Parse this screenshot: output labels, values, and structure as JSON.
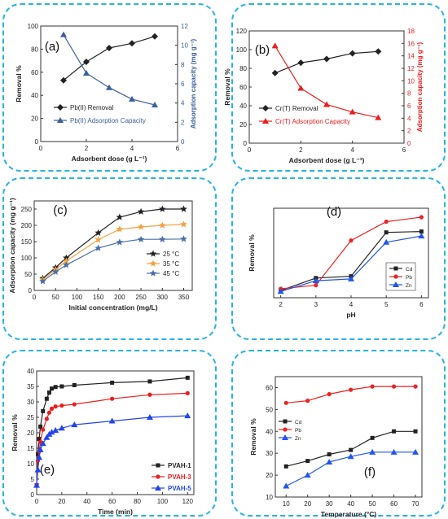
{
  "chart_data": [
    {
      "type": "line",
      "panel_label": "(a)",
      "xlabel": "Adsorbent dose (g L⁻¹)",
      "ylabel": "Removal %",
      "y2label": "Adsorption capacity (mg g⁻¹)",
      "xlim": [
        0,
        6
      ],
      "ylim": [
        0,
        100
      ],
      "y2lim": [
        0,
        12
      ],
      "xticks": [
        0,
        2,
        4,
        6
      ],
      "yticks": [
        0,
        20,
        40,
        60,
        80,
        100
      ],
      "y2ticks": [
        0,
        2,
        4,
        6,
        8,
        10,
        12
      ],
      "legend_position": "bottom-left",
      "colors": {
        "s1": "#222222",
        "s2": "#3a5f9a"
      },
      "series": [
        {
          "name": "Pb(II) Removal",
          "axis": "left",
          "marker": "diamond",
          "x": [
            1,
            2,
            3,
            4,
            5
          ],
          "values": [
            53,
            69,
            81,
            85,
            91
          ]
        },
        {
          "name": "Pb(II) Adsorption Capacity",
          "axis": "right",
          "marker": "triangle",
          "x": [
            1,
            2,
            3,
            4,
            5
          ],
          "values": [
            11.1,
            7.1,
            5.6,
            4.4,
            3.8
          ]
        }
      ]
    },
    {
      "type": "line",
      "panel_label": "(b)",
      "xlabel": "Adsorbent dose (g L⁻¹)",
      "ylabel": "Removal %",
      "y2label": "Adsorption capacity (mg g⁻¹)",
      "xlim": [
        0,
        6
      ],
      "ylim": [
        0,
        120
      ],
      "y2lim": [
        0,
        18
      ],
      "xticks": [
        0,
        2,
        4,
        6
      ],
      "yticks": [
        0,
        20,
        40,
        60,
        80,
        100,
        120
      ],
      "y2ticks": [
        0,
        2,
        4,
        6,
        8,
        10,
        12,
        14,
        16,
        18
      ],
      "legend_position": "bottom-left",
      "colors": {
        "s1": "#222222",
        "s2": "#ee1c1c"
      },
      "series": [
        {
          "name": "Cr(T) Removal",
          "axis": "left",
          "marker": "diamond",
          "x": [
            1,
            2,
            3,
            4,
            5
          ],
          "values": [
            75,
            86,
            90,
            96,
            98
          ]
        },
        {
          "name": "Cr(T) Adsorption Capacity",
          "axis": "right",
          "marker": "triangle",
          "x": [
            1,
            2,
            3,
            4,
            5
          ],
          "values": [
            15.6,
            8.8,
            6.2,
            5.0,
            4.1
          ]
        }
      ]
    },
    {
      "type": "line",
      "panel_label": "(c)",
      "xlabel": "Initial concentration (mg/L)",
      "ylabel": "Adsorption capacity (mg g⁻¹)",
      "xlim": [
        0,
        370
      ],
      "ylim": [
        0,
        275
      ],
      "xticks": [
        0,
        50,
        100,
        150,
        200,
        250,
        300,
        350
      ],
      "yticks": [
        0,
        50,
        100,
        150,
        200,
        250
      ],
      "legend_position": "right",
      "colors": {
        "s1": "#222222",
        "s2": "#f4a142",
        "s3": "#4a6fa5"
      },
      "series": [
        {
          "name": "25 °C",
          "marker": "star",
          "x": [
            20,
            50,
            75,
            150,
            200,
            250,
            300,
            350
          ],
          "values": [
            37,
            70,
            100,
            177,
            225,
            242,
            250,
            250
          ]
        },
        {
          "name": "35 °C",
          "marker": "star",
          "x": [
            20,
            50,
            75,
            150,
            200,
            250,
            300,
            350
          ],
          "values": [
            33,
            64,
            90,
            156,
            188,
            195,
            200,
            203
          ]
        },
        {
          "name": "45 °C",
          "marker": "star",
          "x": [
            20,
            50,
            75,
            150,
            200,
            250,
            300,
            350
          ],
          "values": [
            28,
            57,
            78,
            130,
            148,
            157,
            157,
            158
          ]
        }
      ]
    },
    {
      "type": "line",
      "panel_label": "(d)",
      "xlabel": "pH",
      "ylabel": "Removal %",
      "xlim": [
        1.8,
        6.2
      ],
      "ylim": [
        0,
        100
      ],
      "xticks": [
        2,
        3,
        4,
        5,
        6
      ],
      "yticks": [],
      "legend_position": "right",
      "colors": {
        "s1": "#222222",
        "s2": "#ee2222",
        "s3": "#2255ee"
      },
      "series": [
        {
          "name": "Cd",
          "marker": "square",
          "x": [
            2,
            3,
            4,
            5,
            6
          ],
          "values": [
            8,
            22,
            24,
            73,
            74
          ]
        },
        {
          "name": "Pb",
          "marker": "circle",
          "x": [
            2,
            3,
            4,
            5,
            6
          ],
          "values": [
            10,
            14,
            64,
            85,
            90
          ]
        },
        {
          "name": "Zn",
          "marker": "triangle",
          "x": [
            2,
            3,
            4,
            5,
            6
          ],
          "values": [
            7,
            19,
            21,
            62,
            69
          ]
        }
      ]
    },
    {
      "type": "line",
      "panel_label": "(e)",
      "xlabel": "Time (min)",
      "ylabel": "Removal %",
      "xlim": [
        0,
        125
      ],
      "ylim": [
        0,
        40
      ],
      "xticks": [
        0,
        20,
        40,
        60,
        80,
        100,
        120
      ],
      "yticks": [
        0,
        5,
        10,
        15,
        20,
        25,
        30,
        35,
        40
      ],
      "legend_position": "bottom-right",
      "colors": {
        "s1": "#222222",
        "s2": "#ee1c1c",
        "s3": "#2244ee"
      },
      "series": [
        {
          "name": "PVAH-1",
          "marker": "square",
          "x": [
            0,
            1,
            2,
            3,
            5,
            8,
            10,
            12,
            15,
            20,
            30,
            60,
            90,
            120
          ],
          "values": [
            3,
            13,
            18,
            22,
            27,
            31,
            33,
            34.3,
            34.8,
            35.0,
            35.4,
            36.2,
            36.6,
            37.8
          ]
        },
        {
          "name": "PVAH-3",
          "marker": "circle",
          "x": [
            0,
            1,
            2,
            3,
            5,
            8,
            10,
            12,
            15,
            20,
            30,
            60,
            90,
            120
          ],
          "values": [
            3,
            11,
            14,
            17,
            21,
            24.5,
            26.5,
            27.8,
            28.5,
            28.8,
            29.2,
            31.0,
            32.3,
            32.8
          ]
        },
        {
          "name": "PVAH-5",
          "marker": "triangle",
          "x": [
            0,
            1,
            2,
            3,
            5,
            8,
            10,
            12,
            15,
            20,
            30,
            60,
            90,
            120
          ],
          "values": [
            3,
            8,
            12,
            14.5,
            16.5,
            18.5,
            19.5,
            20.2,
            20.8,
            21.5,
            22.6,
            23.8,
            25.0,
            25.5
          ]
        }
      ]
    },
    {
      "type": "line",
      "panel_label": "(f)",
      "xlabel": "Temperature (°C)",
      "ylabel": "Removal %",
      "xlim": [
        5,
        73
      ],
      "ylim": [
        10,
        65
      ],
      "xticks": [
        10,
        20,
        30,
        40,
        50,
        60,
        70
      ],
      "yticks": [
        10,
        20,
        30,
        40,
        50,
        60
      ],
      "legend_position": "top-left",
      "colors": {
        "s1": "#222222",
        "s2": "#ee2222",
        "s3": "#2255ee"
      },
      "series": [
        {
          "name": "Cd",
          "marker": "square",
          "x": [
            10,
            20,
            30,
            40,
            50,
            60,
            70
          ],
          "values": [
            24,
            26.5,
            29.5,
            31.5,
            37,
            40,
            40
          ]
        },
        {
          "name": "Pb",
          "marker": "circle",
          "x": [
            10,
            20,
            30,
            40,
            50,
            60,
            70
          ],
          "values": [
            53,
            54,
            57,
            59,
            60.5,
            60.5,
            60.5
          ]
        },
        {
          "name": "Zn",
          "marker": "triangle",
          "x": [
            10,
            20,
            30,
            40,
            50,
            60,
            70
          ],
          "values": [
            15,
            20,
            26,
            28.5,
            30.5,
            30.5,
            30.5
          ]
        }
      ]
    }
  ]
}
